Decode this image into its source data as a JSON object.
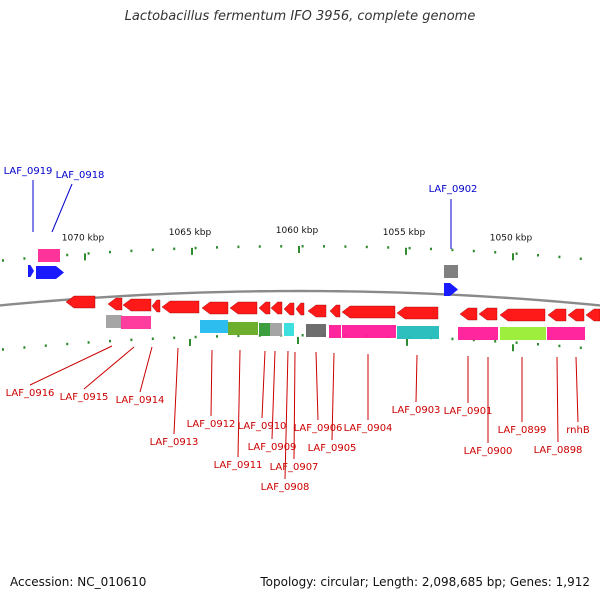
{
  "title": "Lactobacillus fermentum IFO 3956, complete genome",
  "accession": "Accession: NC_010610",
  "topology": "Topology: circular; Length: 2,098,685 bp; Genes: 1,912",
  "colors": {
    "forward_label": "#0000cc",
    "reverse_label": "#cc0000",
    "tick": "#2e8b2e",
    "backbone": "#8a8a8a"
  },
  "ruler": [
    {
      "label": "1070 kbp",
      "kbp": 1070
    },
    {
      "label": "1065 kbp",
      "kbp": 1065
    },
    {
      "label": "1060 kbp",
      "kbp": 1060
    },
    {
      "label": "1055 kbp",
      "kbp": 1055
    },
    {
      "label": "1050 kbp",
      "kbp": 1050
    }
  ],
  "forward_genes": [
    {
      "label": "LAF_0919",
      "color": "#1a1aff"
    },
    {
      "label": "LAF_0918",
      "color": "#1a1aff",
      "cog": "#ff3399"
    },
    {
      "label": "LAF_0902",
      "color": "#1a1aff",
      "cog": "#808080"
    }
  ],
  "reverse_genes": [
    {
      "label": "LAF_0916",
      "color": "#ff1a1a"
    },
    {
      "label": "LAF_0915",
      "color": "#ff1a1a",
      "cog": "#a0a0a0"
    },
    {
      "label": "LAF_0914",
      "color": "#ff1a1a",
      "cog": "#ff3399"
    },
    {
      "label": "LAF_0913",
      "color": "#ff1a1a"
    },
    {
      "label": "LAF_0912",
      "color": "#ff1a1a",
      "cog": "#33aadd"
    },
    {
      "label": "LAF_0911",
      "color": "#ff1a1a",
      "cog": "#22bbee"
    },
    {
      "label": "LAF_0910",
      "color": "#ff1a1a",
      "cog": "#66aa22"
    },
    {
      "label": "LAF_0909",
      "color": "#ff1a1a",
      "cog": "#339933"
    },
    {
      "label": "LAF_0908",
      "color": "#ff1a1a"
    },
    {
      "label": "LAF_0907",
      "color": "#ff1a1a",
      "cog": "#bbaa55"
    },
    {
      "label": "LAF_0906",
      "color": "#ff1a1a",
      "cog": "#33dddd"
    },
    {
      "label": "LAF_0905",
      "color": "#ff1a1a",
      "cog": "#666666"
    },
    {
      "label": "LAF_0904",
      "color": "#ff1a1a",
      "cog": "#ff1a99"
    },
    {
      "label": "LAF_0903",
      "color": "#ff1a1a",
      "cog": "#ff1a99"
    },
    {
      "label": "LAF_0901",
      "color": "#ff1a1a",
      "cog": "#22bbbb"
    },
    {
      "label": "LAF_0900",
      "color": "#ff1a1a",
      "cog": "#ff1a99"
    },
    {
      "label": "LAF_0899",
      "color": "#ff1a1a",
      "cog": "#ff1a99"
    },
    {
      "label": "LAF_0898",
      "color": "#ff1a1a",
      "cog": "#99ee33"
    },
    {
      "label": "rnhB",
      "color": "#ff1a1a",
      "cog": "#ff1a99"
    }
  ]
}
